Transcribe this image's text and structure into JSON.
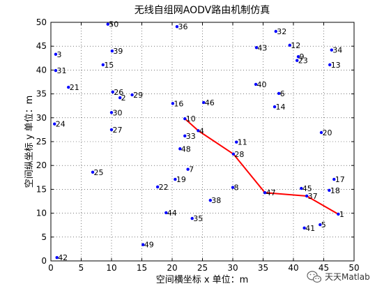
{
  "chart_data": {
    "type": "scatter",
    "title": "无线自组网AODV路由机制仿真",
    "xlabel": "空间横坐标 x 单位：m",
    "ylabel": "空间纵坐标 y 单位：m",
    "xlim": [
      0,
      50
    ],
    "ylim": [
      0,
      50
    ],
    "xticks": [
      0,
      5,
      10,
      15,
      20,
      25,
      30,
      35,
      40,
      45,
      50
    ],
    "yticks": [
      0,
      5,
      10,
      15,
      20,
      25,
      30,
      35,
      40,
      45,
      50
    ],
    "grid": true,
    "colors": {
      "node": "#0000ff",
      "route": "#ff0000"
    },
    "nodes": [
      {
        "id": 1,
        "x": 47.4,
        "y": 9.8
      },
      {
        "id": 2,
        "x": 11.4,
        "y": 34.2
      },
      {
        "id": 3,
        "x": 0.8,
        "y": 43.3
      },
      {
        "id": 4,
        "x": 24.3,
        "y": 27.3
      },
      {
        "id": 5,
        "x": 44.4,
        "y": 7.6
      },
      {
        "id": 6,
        "x": 37.6,
        "y": 35.1
      },
      {
        "id": 7,
        "x": 22.6,
        "y": 19.2
      },
      {
        "id": 8,
        "x": 30.0,
        "y": 15.4
      },
      {
        "id": 9,
        "x": 40.8,
        "y": 42.8
      },
      {
        "id": 10,
        "x": 22.1,
        "y": 29.8
      },
      {
        "id": 11,
        "x": 30.6,
        "y": 24.9
      },
      {
        "id": 12,
        "x": 39.4,
        "y": 45.2
      },
      {
        "id": 13,
        "x": 46.0,
        "y": 41.1
      },
      {
        "id": 14,
        "x": 36.9,
        "y": 32.3
      },
      {
        "id": 15,
        "x": 8.6,
        "y": 41.1
      },
      {
        "id": 16,
        "x": 20.1,
        "y": 33.0
      },
      {
        "id": 17,
        "x": 46.7,
        "y": 17.1
      },
      {
        "id": 18,
        "x": 45.9,
        "y": 14.8
      },
      {
        "id": 19,
        "x": 20.5,
        "y": 17.1
      },
      {
        "id": 20,
        "x": 44.6,
        "y": 26.9
      },
      {
        "id": 21,
        "x": 2.9,
        "y": 36.4
      },
      {
        "id": 22,
        "x": 17.6,
        "y": 15.5
      },
      {
        "id": 23,
        "x": 40.6,
        "y": 42.0
      },
      {
        "id": 24,
        "x": 0.6,
        "y": 28.7
      },
      {
        "id": 25,
        "x": 6.9,
        "y": 18.6
      },
      {
        "id": 26,
        "x": 10.2,
        "y": 35.4
      },
      {
        "id": 27,
        "x": 10.0,
        "y": 27.5
      },
      {
        "id": 28,
        "x": 30.1,
        "y": 22.4
      },
      {
        "id": 29,
        "x": 13.4,
        "y": 34.8
      },
      {
        "id": 30,
        "x": 10.0,
        "y": 31.1
      },
      {
        "id": 31,
        "x": 0.8,
        "y": 39.9
      },
      {
        "id": 32,
        "x": 37.1,
        "y": 48.1
      },
      {
        "id": 33,
        "x": 22.1,
        "y": 26.2
      },
      {
        "id": 34,
        "x": 46.3,
        "y": 44.2
      },
      {
        "id": 35,
        "x": 23.3,
        "y": 8.9
      },
      {
        "id": 36,
        "x": 20.8,
        "y": 49.1
      },
      {
        "id": 37,
        "x": 42.2,
        "y": 13.6
      },
      {
        "id": 38,
        "x": 26.3,
        "y": 12.7
      },
      {
        "id": 39,
        "x": 10.1,
        "y": 44.0
      },
      {
        "id": 40,
        "x": 33.8,
        "y": 37.0
      },
      {
        "id": 41,
        "x": 41.8,
        "y": 6.9
      },
      {
        "id": 42,
        "x": 1.0,
        "y": 0.7
      },
      {
        "id": 43,
        "x": 33.9,
        "y": 44.7
      },
      {
        "id": 44,
        "x": 19.0,
        "y": 10.1
      },
      {
        "id": 45,
        "x": 41.3,
        "y": 15.2
      },
      {
        "id": 46,
        "x": 25.2,
        "y": 33.2
      },
      {
        "id": 47,
        "x": 35.3,
        "y": 14.3
      },
      {
        "id": 48,
        "x": 21.3,
        "y": 23.5
      },
      {
        "id": 49,
        "x": 15.2,
        "y": 3.4
      },
      {
        "id": 50,
        "x": 9.4,
        "y": 49.6
      }
    ],
    "route": [
      10,
      4,
      28,
      47,
      37,
      1
    ]
  },
  "watermark": {
    "text": "天天Matlab",
    "icon": "wechat-icon"
  }
}
